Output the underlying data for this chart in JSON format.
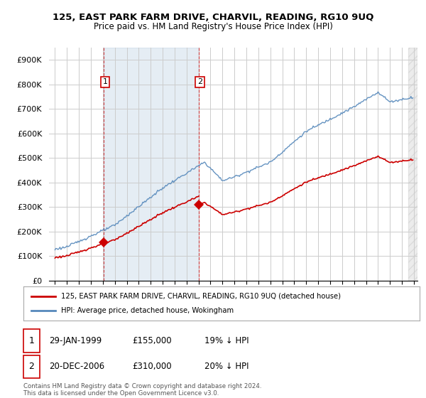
{
  "title": "125, EAST PARK FARM DRIVE, CHARVIL, READING, RG10 9UQ",
  "subtitle": "Price paid vs. HM Land Registry's House Price Index (HPI)",
  "ylim": [
    0,
    950000
  ],
  "yticks": [
    0,
    100000,
    200000,
    300000,
    400000,
    500000,
    600000,
    700000,
    800000,
    900000
  ],
  "ytick_labels": [
    "£0",
    "£100K",
    "£200K",
    "£300K",
    "£400K",
    "£500K",
    "£600K",
    "£700K",
    "£800K",
    "£900K"
  ],
  "price_paid_color": "#cc0000",
  "hpi_color": "#5588bb",
  "hpi_fill_color": "#ddeeff",
  "vline_color": "#cc0000",
  "background_color": "#ffffff",
  "grid_color": "#cccccc",
  "sale1_t": 1999.08,
  "sale1_price": 155000,
  "sale2_t": 2007.0,
  "sale2_price": 310000,
  "legend_label1": "125, EAST PARK FARM DRIVE, CHARVIL, READING, RG10 9UQ (detached house)",
  "legend_label2": "HPI: Average price, detached house, Wokingham",
  "footnote": "Contains HM Land Registry data © Crown copyright and database right 2024.\nThis data is licensed under the Open Government Licence v3.0."
}
